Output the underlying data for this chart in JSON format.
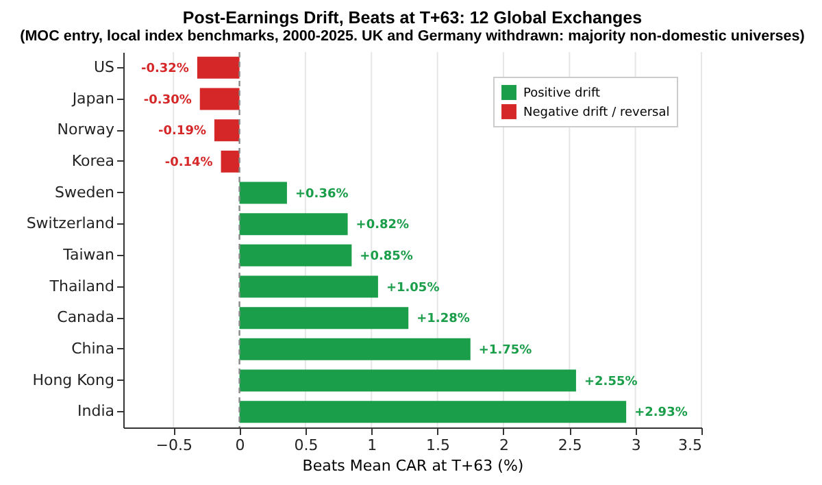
{
  "chart_data": {
    "type": "bar",
    "orientation": "horizontal",
    "title": "Post-Earnings Drift, Beats at T+63: 12 Global Exchanges",
    "subtitle": "(MOC entry, local index benchmarks, 2000-2025. UK and Germany withdrawn: majority non-domestic universes)",
    "xlabel": "Beats Mean CAR at T+63 (%)",
    "categories": [
      "US",
      "Japan",
      "Norway",
      "Korea",
      "Sweden",
      "Switzerland",
      "Taiwan",
      "Thailand",
      "Canada",
      "China",
      "Hong Kong",
      "India"
    ],
    "series": [
      {
        "name": "Positive drift",
        "color": "#1a9e4a",
        "values": [
          null,
          null,
          null,
          null,
          0.36,
          0.82,
          0.85,
          1.05,
          1.28,
          1.75,
          2.55,
          2.93
        ],
        "value_labels": [
          null,
          null,
          null,
          null,
          "+0.36%",
          "+0.82%",
          "+0.85%",
          "+1.05%",
          "+1.28%",
          "+1.75%",
          "+2.55%",
          "+2.93%"
        ]
      },
      {
        "name": "Negative drift / reversal",
        "color": "#d62728",
        "values": [
          -0.32,
          -0.3,
          -0.19,
          -0.14,
          null,
          null,
          null,
          null,
          null,
          null,
          null,
          null
        ],
        "value_labels": [
          "-0.32%",
          "-0.30%",
          "-0.19%",
          "-0.14%",
          null,
          null,
          null,
          null,
          null,
          null,
          null,
          null
        ]
      }
    ],
    "xlim": [
      -0.88,
      3.5
    ],
    "xticks": [
      {
        "value": -0.5,
        "label": "−0.5"
      },
      0,
      0.5,
      1,
      1.5,
      2,
      2.5,
      3,
      3.5
    ],
    "grid": "x",
    "legend": "top right",
    "ref_lines": [
      {
        "axis": "x",
        "value": 0,
        "color": "#888888",
        "line_style": "dashed"
      }
    ]
  }
}
